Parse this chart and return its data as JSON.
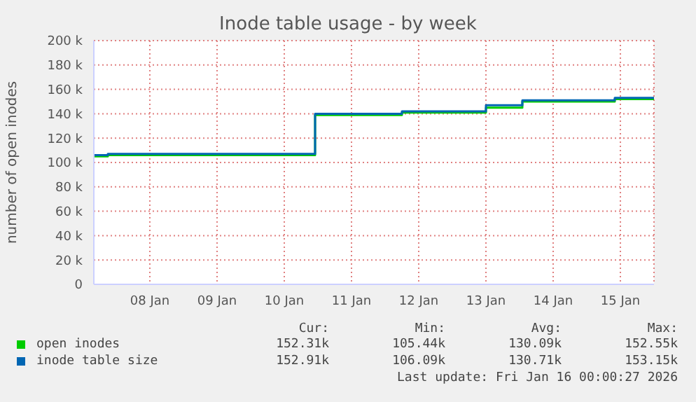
{
  "chart_data": {
    "type": "step",
    "title": "Inode table usage - by week",
    "ylabel": "number of open inodes",
    "xlim": [
      "2026-01-07T04:00",
      "2026-01-15T12:00"
    ],
    "xticks": [
      {
        "value": "2026-01-08",
        "label": "08 Jan"
      },
      {
        "value": "2026-01-09",
        "label": "09 Jan"
      },
      {
        "value": "2026-01-10",
        "label": "10 Jan"
      },
      {
        "value": "2026-01-11",
        "label": "11 Jan"
      },
      {
        "value": "2026-01-12",
        "label": "12 Jan"
      },
      {
        "value": "2026-01-13",
        "label": "13 Jan"
      },
      {
        "value": "2026-01-14",
        "label": "14 Jan"
      },
      {
        "value": "2026-01-15",
        "label": "15 Jan"
      }
    ],
    "ylim": [
      0,
      200000
    ],
    "yticks": [
      0,
      {
        "value": 20000,
        "label": "20 k"
      },
      {
        "value": 40000,
        "label": "40 k"
      },
      {
        "value": 60000,
        "label": "60 k"
      },
      {
        "value": 80000,
        "label": "80 k"
      },
      {
        "value": 100000,
        "label": "100 k"
      },
      {
        "value": 120000,
        "label": "120 k"
      },
      {
        "value": 140000,
        "label": "140 k"
      },
      {
        "value": 160000,
        "label": "160 k"
      },
      {
        "value": 180000,
        "label": "180 k"
      },
      {
        "value": 200000,
        "label": "200 k"
      }
    ],
    "grid": true,
    "legend": "bottom",
    "series": [
      {
        "name": "open inodes",
        "color": "#00cc00",
        "x": [
          "2026-01-07T04:00",
          "2026-01-07T09:00",
          "2026-01-10T11:00",
          "2026-01-11T18:00",
          "2026-01-13T00:00",
          "2026-01-13T13:00",
          "2026-01-14T22:00",
          "2026-01-15T12:00"
        ],
        "values": [
          105000,
          106000,
          139000,
          141000,
          145000,
          150000,
          152000,
          152000
        ]
      },
      {
        "name": "inode table size",
        "color": "#0066b3",
        "x": [
          "2026-01-07T04:00",
          "2026-01-07T09:00",
          "2026-01-10T11:00",
          "2026-01-11T18:00",
          "2026-01-13T00:00",
          "2026-01-13T13:00",
          "2026-01-14T22:00",
          "2026-01-15T12:00"
        ],
        "values": [
          106000,
          107000,
          140000,
          142000,
          147000,
          151000,
          153000,
          153000
        ]
      }
    ],
    "annotations": [
      "Cur:",
      "Min:",
      "Avg:",
      "Max:",
      "152.31k",
      "105.44k",
      "130.09k",
      "152.55k",
      "152.91k",
      "106.09k",
      "130.71k",
      "153.15k",
      "Last update: Fri Jan 16 00:00:27 2026"
    ]
  }
}
